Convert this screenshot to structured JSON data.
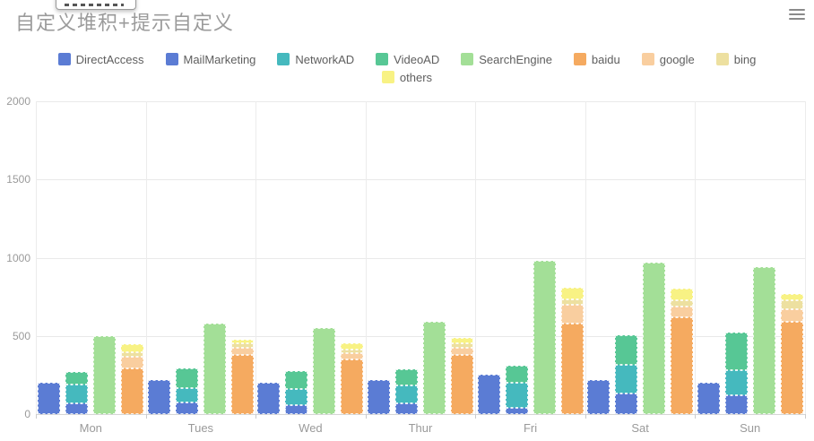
{
  "title": "自定义堆积+提示自定义",
  "toolbar": {
    "menu_icon": "hamburger-menu"
  },
  "legend": {
    "rows": [
      [
        "DirectAccess",
        "MailMarketing",
        "NetworkAD",
        "VideoAD",
        "SearchEngine",
        "baidu",
        "google",
        "bing"
      ],
      [
        "others"
      ]
    ]
  },
  "colors": {
    "title_text": "#9b9b9b",
    "legend_text": "#5e5e5e",
    "axis_text": "#9a9a9a",
    "gridline": "#e9e9e9",
    "DirectAccess": "#5b7cd4",
    "MailMarketing": "#5b7cd4",
    "NetworkAD": "#45b9be",
    "VideoAD": "#57c795",
    "SearchEngine": "#a3df97",
    "baidu": "#f5aa60",
    "google": "#f9ce9f",
    "bing": "#ede0a0",
    "others": "#f8f284"
  },
  "chart_data": {
    "type": "bar",
    "title": "自定义堆积+提示自定义",
    "xlabel": "",
    "ylabel": "",
    "ylim": [
      0,
      2000
    ],
    "yticks": [
      0,
      500,
      1000,
      1500,
      2000
    ],
    "grid": true,
    "legend_position": "top",
    "categories": [
      "Mon",
      "Tues",
      "Wed",
      "Thur",
      "Fri",
      "Sat",
      "Sun"
    ],
    "bar_slots": [
      [
        "DirectAccess"
      ],
      [
        "MailMarketing",
        "NetworkAD",
        "VideoAD"
      ],
      [
        "SearchEngine"
      ],
      [
        "baidu",
        "google",
        "bing",
        "others"
      ]
    ],
    "series": [
      {
        "name": "DirectAccess",
        "stack": null,
        "values": [
          200,
          220,
          200,
          220,
          250,
          220,
          200
        ]
      },
      {
        "name": "MailMarketing",
        "stack": "ad",
        "values": [
          70,
          75,
          60,
          70,
          40,
          130,
          120
        ]
      },
      {
        "name": "NetworkAD",
        "stack": "ad",
        "values": [
          120,
          90,
          100,
          115,
          160,
          185,
          160
        ]
      },
      {
        "name": "VideoAD",
        "stack": "ad",
        "values": [
          80,
          130,
          115,
          100,
          110,
          190,
          240
        ]
      },
      {
        "name": "SearchEngine",
        "stack": null,
        "values": [
          500,
          580,
          550,
          590,
          980,
          970,
          940
        ]
      },
      {
        "name": "baidu",
        "stack": "engine",
        "values": [
          290,
          380,
          350,
          380,
          580,
          620,
          590
        ]
      },
      {
        "name": "google",
        "stack": "engine",
        "values": [
          75,
          45,
          40,
          45,
          120,
          70,
          80
        ]
      },
      {
        "name": "bing",
        "stack": "engine",
        "values": [
          30,
          25,
          25,
          30,
          35,
          35,
          60
        ]
      },
      {
        "name": "others",
        "stack": "engine",
        "values": [
          50,
          25,
          35,
          30,
          75,
          75,
          40
        ]
      }
    ]
  }
}
